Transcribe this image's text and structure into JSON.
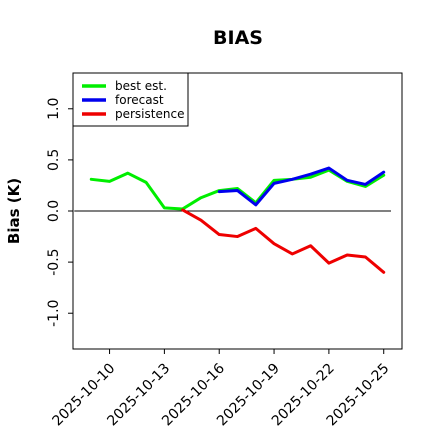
{
  "chart_data": {
    "type": "line",
    "title": "BIAS",
    "ylabel": "Bias (K)",
    "xlabel": "",
    "ylim": [
      -1.35,
      1.35
    ],
    "yticks": [
      -1.0,
      -0.5,
      0.0,
      0.5,
      1.0
    ],
    "ytick_labels": [
      "-1.0",
      "-0.5",
      "0.0",
      "0.5",
      "1.0"
    ],
    "xlim": [
      "2025-10-08",
      "2025-10-26"
    ],
    "xticks": [
      "2025-10-10",
      "2025-10-13",
      "2025-10-16",
      "2025-10-19",
      "2025-10-22",
      "2025-10-25"
    ],
    "xtick_labels": [
      "2025-10-10",
      "2025-10-13",
      "2025-10-16",
      "2025-10-19",
      "2025-10-22",
      "2025-10-25"
    ],
    "highlighted_xtick": "2025-10-16",
    "highlight_color": "#2e8b22",
    "zero_line": true,
    "grid": false,
    "legend_position": "top-left",
    "x": [
      "2025-10-09",
      "2025-10-10",
      "2025-10-11",
      "2025-10-12",
      "2025-10-13",
      "2025-10-14",
      "2025-10-15",
      "2025-10-16",
      "2025-10-17",
      "2025-10-18",
      "2025-10-19",
      "2025-10-20",
      "2025-10-21",
      "2025-10-22",
      "2025-10-23",
      "2025-10-24",
      "2025-10-25"
    ],
    "series": [
      {
        "name": "best est.",
        "color": "#00ee00",
        "values": [
          0.31,
          0.29,
          0.37,
          0.28,
          0.03,
          0.02,
          0.13,
          0.2,
          0.22,
          0.08,
          0.3,
          0.31,
          0.33,
          0.4,
          0.29,
          0.24,
          0.35
        ]
      },
      {
        "name": "forecast",
        "color": "#0000ee",
        "values": [
          null,
          null,
          null,
          null,
          null,
          null,
          null,
          0.19,
          0.2,
          0.06,
          0.27,
          0.31,
          0.36,
          0.42,
          0.3,
          0.26,
          0.38
        ]
      },
      {
        "name": "persistence",
        "color": "#ee0000",
        "values": [
          null,
          null,
          null,
          null,
          null,
          0.01,
          -0.09,
          -0.23,
          -0.25,
          -0.17,
          -0.32,
          -0.42,
          -0.34,
          -0.51,
          -0.43,
          -0.45,
          -0.6
        ]
      }
    ]
  }
}
